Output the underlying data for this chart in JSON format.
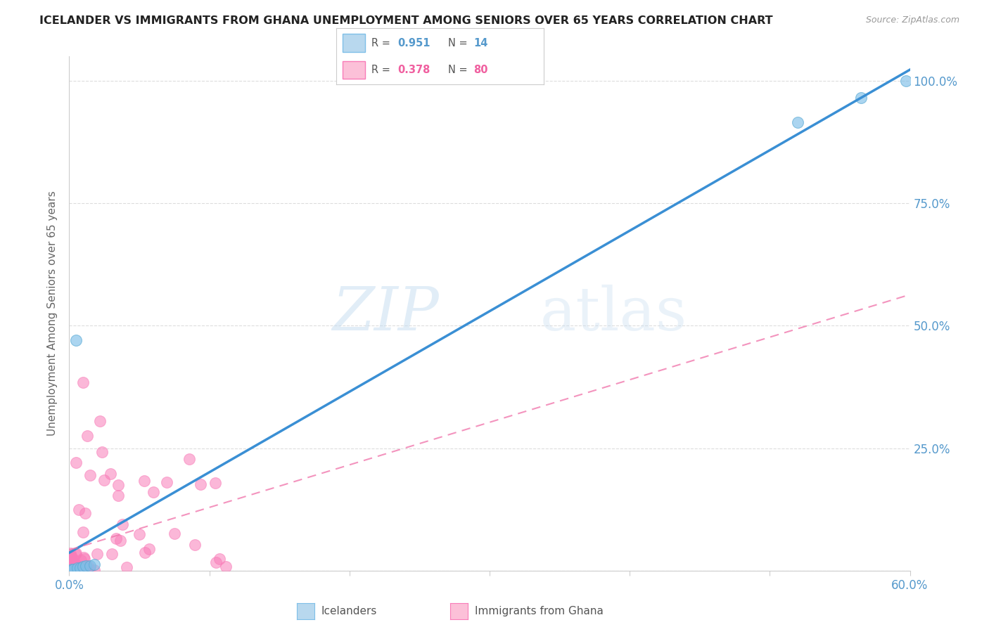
{
  "title": "ICELANDER VS IMMIGRANTS FROM GHANA UNEMPLOYMENT AMONG SENIORS OVER 65 YEARS CORRELATION CHART",
  "source": "Source: ZipAtlas.com",
  "ylabel": "Unemployment Among Seniors over 65 years",
  "xlim": [
    0.0,
    0.6
  ],
  "ylim": [
    0.0,
    1.05
  ],
  "icelander_color": "#7fbfe8",
  "icelander_edge_color": "#5aaad4",
  "ghana_color": "#f97cb8",
  "ghana_edge_color": "#f060a0",
  "icelander_line_color": "#3a8fd4",
  "ghana_line_color": "#f070a8",
  "icelander_r": 0.951,
  "icelander_n": 14,
  "ghana_r": 0.378,
  "ghana_n": 80,
  "background_color": "#ffffff",
  "watermark_zip": "ZIP",
  "watermark_atlas": "atlas",
  "legend_icelander_label": "Icelanders",
  "legend_ghana_label": "Immigrants from Ghana",
  "grid_color": "#dddddd",
  "tick_color": "#5599cc",
  "spine_color": "#cccccc",
  "ylabel_color": "#666666",
  "title_color": "#222222",
  "source_color": "#999999"
}
